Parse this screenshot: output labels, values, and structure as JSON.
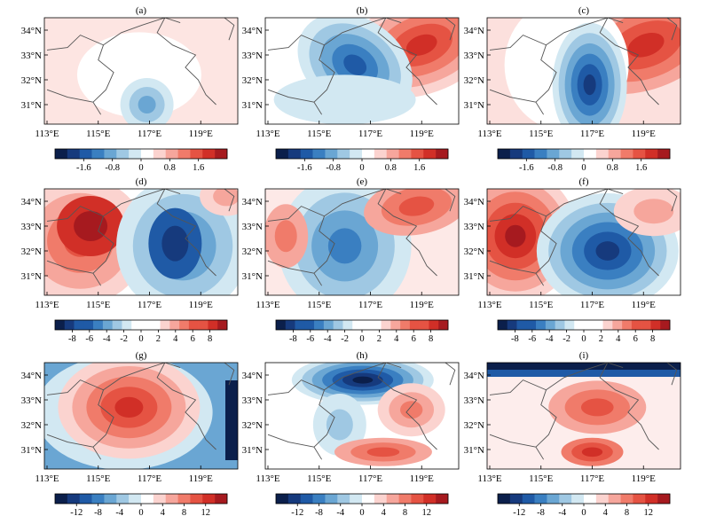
{
  "panels": [
    {
      "label": "(a)",
      "colorbar_set": "small",
      "pattern": "a"
    },
    {
      "label": "(b)",
      "colorbar_set": "small",
      "pattern": "b"
    },
    {
      "label": "(c)",
      "colorbar_set": "small",
      "pattern": "c"
    },
    {
      "label": "(d)",
      "colorbar_set": "mid",
      "pattern": "d"
    },
    {
      "label": "(e)",
      "colorbar_set": "mid",
      "pattern": "e"
    },
    {
      "label": "(f)",
      "colorbar_set": "mid",
      "pattern": "f"
    },
    {
      "label": "(g)",
      "colorbar_set": "large",
      "pattern": "g"
    },
    {
      "label": "(h)",
      "colorbar_set": "large",
      "pattern": "h"
    },
    {
      "label": "(i)",
      "colorbar_set": "large",
      "pattern": "i"
    }
  ],
  "x_ticks": [
    "113°E",
    "115°E",
    "117°E",
    "119°E"
  ],
  "y_ticks": [
    "34°N",
    "33°N",
    "32°N",
    "31°N"
  ],
  "colorbars": {
    "small": {
      "labels": [
        "-1.6",
        "-0.8",
        "0",
        "0.8",
        "1.6"
      ]
    },
    "mid": {
      "labels": [
        "-8",
        "-6",
        "-4",
        "-2",
        "0",
        "2",
        "4",
        "6",
        "8"
      ]
    },
    "large": {
      "labels": [
        "-12",
        "-8",
        "-4",
        "0",
        "4",
        "8",
        "12"
      ]
    }
  },
  "colormap": [
    "#0b1f4b",
    "#163a7d",
    "#1f5aa6",
    "#3a7fc1",
    "#6aa6d3",
    "#9fc8e3",
    "#d2e8f2",
    "#ffffff",
    "#ffffff",
    "#fbd3cf",
    "#f6a69c",
    "#f07b6a",
    "#e55343",
    "#d12f27",
    "#a61a1f"
  ],
  "chart_data": [
    {
      "type": "heatmap",
      "title": "(a)",
      "x": [
        "113°E",
        "115°E",
        "117°E",
        "119°E"
      ],
      "y": [
        "34°N",
        "33°N",
        "32°N",
        "31°N"
      ],
      "colorbar": [
        -1.6,
        -0.8,
        0,
        0.8,
        1.6
      ],
      "features": [
        {
          "kind": "weak-low",
          "lon": 116.9,
          "lat": 31.0,
          "value": -0.9
        },
        {
          "kind": "weak-high",
          "lon": 118.5,
          "lat": 34.3,
          "value": 0.4
        }
      ]
    },
    {
      "type": "heatmap",
      "title": "(b)",
      "x": [
        "113°E",
        "115°E",
        "117°E",
        "119°E"
      ],
      "y": [
        "34°N",
        "33°N",
        "32°N",
        "31°N"
      ],
      "colorbar": [
        -1.6,
        -0.8,
        0,
        0.8,
        1.6
      ],
      "features": [
        {
          "kind": "low",
          "lon": 116.4,
          "lat": 32.7,
          "value": -1.9
        },
        {
          "kind": "high",
          "lon": 118.6,
          "lat": 33.4,
          "value": 1.5
        }
      ]
    },
    {
      "type": "heatmap",
      "title": "(c)",
      "x": [
        "113°E",
        "115°E",
        "117°E",
        "119°E"
      ],
      "y": [
        "34°N",
        "33°N",
        "32°N",
        "31°N"
      ],
      "colorbar": [
        -1.6,
        -0.8,
        0,
        0.8,
        1.6
      ],
      "features": [
        {
          "kind": "low",
          "lon": 116.9,
          "lat": 31.8,
          "value": -2.2
        },
        {
          "kind": "high",
          "lon": 119.0,
          "lat": 33.4,
          "value": 1.6
        }
      ]
    },
    {
      "type": "heatmap",
      "title": "(d)",
      "x": [
        "113°E",
        "115°E",
        "117°E",
        "119°E"
      ],
      "y": [
        "34°N",
        "33°N",
        "32°N",
        "31°N"
      ],
      "colorbar": [
        -8,
        -6,
        -4,
        -2,
        0,
        2,
        4,
        6,
        8
      ],
      "features": [
        {
          "kind": "high",
          "lon": 114.6,
          "lat": 32.9,
          "value": 6.5
        },
        {
          "kind": "low",
          "lon": 118.3,
          "lat": 32.3,
          "value": -7.0
        }
      ]
    },
    {
      "type": "heatmap",
      "title": "(e)",
      "x": [
        "113°E",
        "115°E",
        "117°E",
        "119°E"
      ],
      "y": [
        "34°N",
        "33°N",
        "32°N",
        "31°N"
      ],
      "colorbar": [
        -8,
        -6,
        -4,
        -2,
        0,
        2,
        4,
        6,
        8
      ],
      "features": [
        {
          "kind": "low",
          "lon": 115.8,
          "lat": 32.3,
          "value": -4.5
        },
        {
          "kind": "high",
          "lon": 118.8,
          "lat": 33.8,
          "value": 4.0
        }
      ]
    },
    {
      "type": "heatmap",
      "title": "(f)",
      "x": [
        "113°E",
        "115°E",
        "117°E",
        "119°E"
      ],
      "y": [
        "34°N",
        "33°N",
        "32°N",
        "31°N"
      ],
      "colorbar": [
        -8,
        -6,
        -4,
        -2,
        0,
        2,
        4,
        6,
        8
      ],
      "features": [
        {
          "kind": "high",
          "lon": 114.0,
          "lat": 32.8,
          "value": 7.5
        },
        {
          "kind": "low",
          "lon": 117.5,
          "lat": 32.0,
          "value": -7.5
        }
      ]
    },
    {
      "type": "heatmap",
      "title": "(g)",
      "x": [
        "113°E",
        "115°E",
        "117°E",
        "119°E"
      ],
      "y": [
        "34°N",
        "33°N",
        "32°N",
        "31°N"
      ],
      "colorbar": [
        -12,
        -8,
        -4,
        0,
        4,
        8,
        12
      ],
      "features": [
        {
          "kind": "high",
          "lon": 116.4,
          "lat": 32.9,
          "value": 11
        },
        {
          "kind": "low",
          "lon": 120.0,
          "lat": 32.5,
          "value": -13
        }
      ]
    },
    {
      "type": "heatmap",
      "title": "(h)",
      "x": [
        "113°E",
        "115°E",
        "117°E",
        "119°E"
      ],
      "y": [
        "34°N",
        "33°N",
        "32°N",
        "31°N"
      ],
      "colorbar": [
        -12,
        -8,
        -4,
        0,
        4,
        8,
        12
      ],
      "features": [
        {
          "kind": "low",
          "lon": 116.9,
          "lat": 33.8,
          "value": -13
        },
        {
          "kind": "high",
          "lon": 118.5,
          "lat": 32.6,
          "value": 6
        }
      ]
    },
    {
      "type": "heatmap",
      "title": "(i)",
      "x": [
        "113°E",
        "115°E",
        "117°E",
        "119°E"
      ],
      "y": [
        "34°N",
        "33°N",
        "32°N",
        "31°N"
      ],
      "colorbar": [
        -12,
        -8,
        -4,
        0,
        4,
        8,
        12
      ],
      "features": [
        {
          "kind": "low",
          "lon": 116.5,
          "lat": 34.5,
          "value": -10
        },
        {
          "kind": "high",
          "lon": 117.3,
          "lat": 32.7,
          "value": 8
        }
      ]
    }
  ]
}
